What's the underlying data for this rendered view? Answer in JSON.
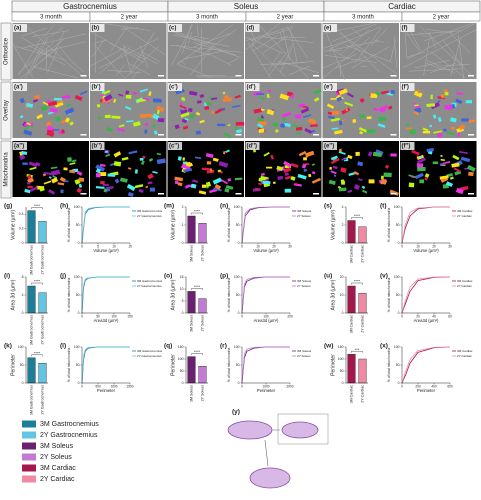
{
  "header": {
    "tissues": [
      "Gastrocnemius",
      "Soleus",
      "Cardiac"
    ],
    "ages": [
      "3 month",
      "2 year"
    ]
  },
  "rows": [
    "Orthoslice",
    "Overlay",
    "Mitochondria"
  ],
  "panel_labels": [
    [
      "(a)",
      "(b)",
      "(c)",
      "(d)",
      "(e)",
      "(f)"
    ],
    [
      "(a')",
      "(b')",
      "(c')",
      "(d')",
      "(e')",
      "(f')"
    ],
    [
      "(a'')",
      "(b'')",
      "(c'')",
      "(d'')",
      "(e'')",
      "(f'')"
    ]
  ],
  "charts": [
    {
      "label": "(g)",
      "type": "bar",
      "ylabel": "Volume (µm³)",
      "categories": [
        "3M Gastrocnemius",
        "2Y Gastrocnemius"
      ],
      "values": [
        0.45,
        0.3
      ],
      "colors": [
        "#1b7f99",
        "#62c6e3"
      ],
      "ylim": [
        0,
        0.5
      ],
      "yticks": [
        0,
        0.2,
        0.4
      ],
      "significance": "****"
    },
    {
      "label": "(h)",
      "type": "line",
      "ylabel": "% of total mitochondria",
      "xlabel": "Volume (µm³)",
      "x": [
        0,
        1,
        2,
        4,
        8,
        15
      ],
      "xlim": [
        0,
        15
      ],
      "xticks": [
        0,
        5,
        10,
        15
      ],
      "ylim": [
        0,
        100
      ],
      "yticks": [
        0,
        50,
        100
      ],
      "series": [
        {
          "name": "3M Gastrocnemius",
          "color": "#1b7f99",
          "values": [
            0,
            80,
            93,
            98,
            100,
            100
          ]
        },
        {
          "name": "2Y Gastrocnemius",
          "color": "#62c6e3",
          "values": [
            0,
            86,
            96,
            99,
            100,
            100
          ]
        }
      ]
    },
    {
      "label": "(m)",
      "type": "bar",
      "ylabel": "Volume (µm³)",
      "categories": [
        "3M Soleus",
        "2Y Soleus"
      ],
      "values": [
        1.5,
        1.1
      ],
      "colors": [
        "#6b2070",
        "#c27ad3"
      ],
      "ylim": [
        0,
        2
      ],
      "yticks": [
        0,
        1,
        2
      ],
      "significance": "****"
    },
    {
      "label": "(n)",
      "type": "line",
      "ylabel": "% of total mitochondria",
      "xlabel": "Volume (µm³)",
      "x": [
        0,
        2,
        5,
        10,
        20,
        30
      ],
      "xlim": [
        0,
        30
      ],
      "xticks": [
        0,
        10,
        20,
        30
      ],
      "ylim": [
        0,
        100
      ],
      "yticks": [
        0,
        50,
        100
      ],
      "series": [
        {
          "name": "3M Soleus",
          "color": "#6b2070",
          "values": [
            0,
            75,
            92,
            98,
            100,
            100
          ]
        },
        {
          "name": "2Y Soleus",
          "color": "#c27ad3",
          "values": [
            0,
            82,
            95,
            99,
            100,
            100
          ]
        }
      ]
    },
    {
      "label": "(s)",
      "type": "bar",
      "ylabel": "Volume (µm³)",
      "categories": [
        "3M Cardiac",
        "2Y Cardiac"
      ],
      "values": [
        2.5,
        1.8
      ],
      "colors": [
        "#a3174b",
        "#f08aa2"
      ],
      "ylim": [
        0,
        4
      ],
      "yticks": [
        0,
        2,
        4
      ],
      "significance": "****"
    },
    {
      "label": "(t)",
      "type": "line",
      "ylabel": "% of total mitochondria",
      "xlabel": "Volume (µm³)",
      "x": [
        0,
        2,
        5,
        10,
        20,
        30
      ],
      "xlim": [
        0,
        30
      ],
      "xticks": [
        0,
        10,
        20,
        30
      ],
      "ylim": [
        0,
        100
      ],
      "yticks": [
        0,
        50,
        100
      ],
      "series": [
        {
          "name": "3M Cardiac",
          "color": "#a3174b",
          "values": [
            0,
            40,
            75,
            95,
            100,
            100
          ]
        },
        {
          "name": "2Y Cardiac",
          "color": "#f08aa2",
          "values": [
            0,
            50,
            85,
            97,
            100,
            100
          ]
        }
      ]
    },
    {
      "label": "(i)",
      "type": "bar",
      "ylabel": "Area 3d (µm²)",
      "categories": [
        "3M Gastrocnemius",
        "2Y Gastrocnemius"
      ],
      "values": [
        6,
        4.5
      ],
      "colors": [
        "#1b7f99",
        "#62c6e3"
      ],
      "ylim": [
        0,
        8
      ],
      "yticks": [
        0,
        4,
        8
      ],
      "significance": "****"
    },
    {
      "label": "(j)",
      "type": "line",
      "ylabel": "% of total mitochondria",
      "xlabel": "Area3d (µm²)",
      "x": [
        0,
        5,
        10,
        20,
        50,
        150
      ],
      "xlim": [
        0,
        150
      ],
      "xticks": [
        0,
        50,
        100,
        150
      ],
      "ylim": [
        0,
        100
      ],
      "yticks": [
        0,
        50,
        100
      ],
      "series": [
        {
          "name": "3M Gastrocnemius",
          "color": "#1b7f99",
          "values": [
            0,
            70,
            90,
            97,
            100,
            100
          ]
        },
        {
          "name": "2Y Gastrocnemius",
          "color": "#62c6e3",
          "values": [
            0,
            78,
            94,
            98,
            100,
            100
          ]
        }
      ]
    },
    {
      "label": "(o)",
      "type": "bar",
      "ylabel": "Area 3d (µm²)",
      "categories": [
        "3M Soleus",
        "2Y Soleus"
      ],
      "values": [
        9,
        6
      ],
      "colors": [
        "#6b2070",
        "#c27ad3"
      ],
      "ylim": [
        0,
        15
      ],
      "yticks": [
        0,
        5,
        10,
        15
      ],
      "significance": "****"
    },
    {
      "label": "(p)",
      "type": "line",
      "ylabel": "% of total mitochondria",
      "xlabel": "Area3d (µm²)",
      "x": [
        0,
        10,
        20,
        50,
        100,
        200
      ],
      "xlim": [
        0,
        200
      ],
      "xticks": [
        0,
        100,
        200
      ],
      "ylim": [
        0,
        100
      ],
      "yticks": [
        0,
        50,
        100
      ],
      "series": [
        {
          "name": "3M Soleus",
          "color": "#6b2070",
          "values": [
            0,
            72,
            88,
            97,
            100,
            100
          ]
        },
        {
          "name": "2Y Soleus",
          "color": "#c27ad3",
          "values": [
            0,
            80,
            93,
            99,
            100,
            100
          ]
        }
      ]
    },
    {
      "label": "(u)",
      "type": "bar",
      "ylabel": "Area 3d (µm²)",
      "categories": [
        "3M Cardiac",
        "2Y Cardiac"
      ],
      "values": [
        15,
        11
      ],
      "colors": [
        "#a3174b",
        "#f08aa2"
      ],
      "ylim": [
        0,
        20
      ],
      "yticks": [
        0,
        10,
        20
      ],
      "significance": "****"
    },
    {
      "label": "(v)",
      "type": "line",
      "ylabel": "% of total mitochondria",
      "xlabel": "Area3d (µm²)",
      "x": [
        0,
        5,
        10,
        20,
        40,
        60
      ],
      "xlim": [
        0,
        60
      ],
      "xticks": [
        0,
        20,
        40,
        60
      ],
      "ylim": [
        0,
        100
      ],
      "yticks": [
        0,
        50,
        100
      ],
      "series": [
        {
          "name": "3M Cardiac",
          "color": "#a3174b",
          "values": [
            0,
            30,
            60,
            90,
            99,
            100
          ]
        },
        {
          "name": "2Y Cardiac",
          "color": "#f08aa2",
          "values": [
            0,
            40,
            72,
            94,
            100,
            100
          ]
        }
      ]
    },
    {
      "label": "(k)",
      "type": "bar",
      "ylabel": "Perimeter",
      "categories": [
        "3M Gastrocnemius",
        "2Y Gastrocnemius"
      ],
      "values": [
        70,
        55
      ],
      "colors": [
        "#1b7f99",
        "#62c6e3"
      ],
      "ylim": [
        0,
        100
      ],
      "yticks": [
        0,
        50,
        100
      ],
      "significance": "****"
    },
    {
      "label": "(l)",
      "type": "line",
      "ylabel": "% of total mitochondria",
      "xlabel": "Perimeter",
      "x": [
        0,
        50,
        100,
        200,
        500,
        1500
      ],
      "xlim": [
        0,
        1500
      ],
      "xticks": [
        0,
        500,
        1000,
        1500
      ],
      "ylim": [
        0,
        100
      ],
      "yticks": [
        0,
        50,
        100
      ],
      "series": [
        {
          "name": "3M Gastrocnemius",
          "color": "#1b7f99",
          "values": [
            0,
            65,
            88,
            97,
            100,
            100
          ]
        },
        {
          "name": "2Y Gastrocnemius",
          "color": "#62c6e3",
          "values": [
            0,
            75,
            93,
            99,
            100,
            100
          ]
        }
      ]
    },
    {
      "label": "(q)",
      "type": "bar",
      "ylabel": "Perimeter",
      "categories": [
        "3M Soleus",
        "2Y Soleus"
      ],
      "values": [
        110,
        70
      ],
      "colors": [
        "#6b2070",
        "#c27ad3"
      ],
      "ylim": [
        0,
        150
      ],
      "yticks": [
        0,
        50,
        100,
        150
      ],
      "significance": "****"
    },
    {
      "label": "(r)",
      "type": "line",
      "ylabel": "% of total mitochondria",
      "xlabel": "Perimeter",
      "x": [
        0,
        100,
        200,
        500,
        1000,
        2000
      ],
      "xlim": [
        0,
        2000
      ],
      "xticks": [
        0,
        1000,
        2000
      ],
      "ylim": [
        0,
        100
      ],
      "yticks": [
        0,
        50,
        100
      ],
      "series": [
        {
          "name": "3M Soleus",
          "color": "#6b2070",
          "values": [
            0,
            70,
            88,
            97,
            100,
            100
          ]
        },
        {
          "name": "2Y Soleus",
          "color": "#c27ad3",
          "values": [
            0,
            80,
            94,
            99,
            100,
            100
          ]
        }
      ]
    },
    {
      "label": "(w)",
      "type": "bar",
      "ylabel": "Perimeter",
      "categories": [
        "3M Cardiac",
        "2Y Cardiac"
      ],
      "values": [
        120,
        100
      ],
      "colors": [
        "#a3174b",
        "#f08aa2"
      ],
      "ylim": [
        0,
        150
      ],
      "yticks": [
        0,
        50,
        100,
        150
      ],
      "significance": "***"
    },
    {
      "label": "(x)",
      "type": "line",
      "ylabel": "% of total mitochondria",
      "xlabel": "Perimeter",
      "x": [
        0,
        50,
        100,
        200,
        400,
        600
      ],
      "xlim": [
        0,
        600
      ],
      "xticks": [
        0,
        200,
        400,
        600
      ],
      "ylim": [
        0,
        100
      ],
      "yticks": [
        0,
        50,
        100
      ],
      "series": [
        {
          "name": "3M Cardiac",
          "color": "#a3174b",
          "values": [
            0,
            25,
            55,
            85,
            98,
            100
          ]
        },
        {
          "name": "2Y Cardiac",
          "color": "#f08aa2",
          "values": [
            0,
            35,
            65,
            90,
            99,
            100
          ]
        }
      ]
    }
  ],
  "legend": [
    {
      "name": "3M Gastrocnemius",
      "color": "#1b7f99"
    },
    {
      "name": "2Y Gastrocnemius",
      "color": "#62c6e3"
    },
    {
      "name": "3M Soleus",
      "color": "#6b2070"
    },
    {
      "name": "2Y Soleus",
      "color": "#c27ad3"
    },
    {
      "name": "3M Cardiac",
      "color": "#a3174b"
    },
    {
      "name": "2Y Cardiac",
      "color": "#f08aa2"
    }
  ],
  "diagram_label": "(y)"
}
